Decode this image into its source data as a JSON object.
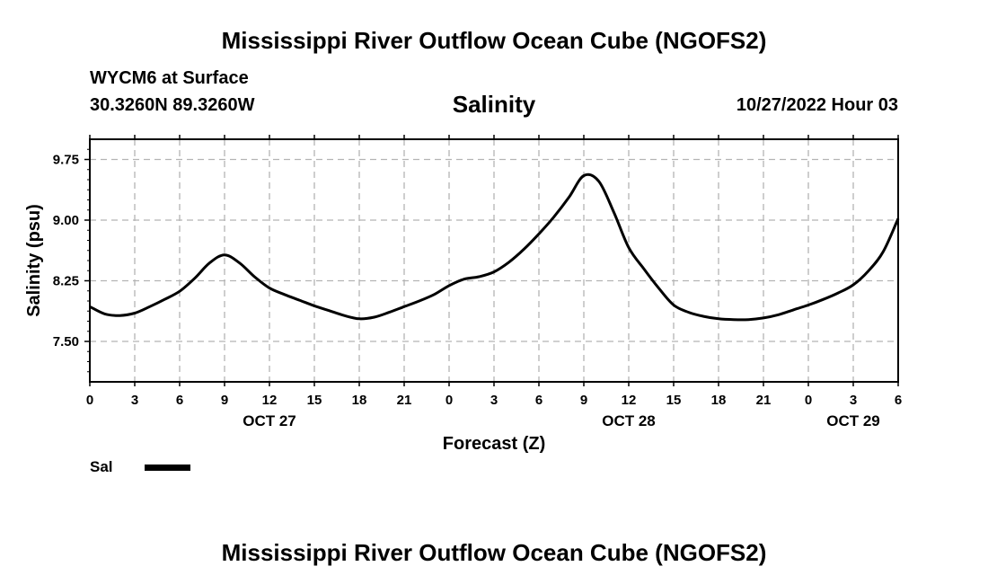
{
  "header": {
    "main_title": "Mississippi River Outflow Ocean Cube (NGOFS2)",
    "station": "WYCM6 at Surface",
    "coords": "30.3260N  89.3260W",
    "datetime": "10/27/2022 Hour 03",
    "footer_title": "Mississippi River Outflow Ocean Cube (NGOFS2)"
  },
  "chart_data": {
    "type": "line",
    "title": "Salinity",
    "xlabel": "Forecast (Z)",
    "ylabel": "Salinity (psu)",
    "xlim": [
      0,
      54
    ],
    "ylim": [
      7.0,
      10.0
    ],
    "x_ticks": [
      {
        "value": 0,
        "label": "0"
      },
      {
        "value": 3,
        "label": "3"
      },
      {
        "value": 6,
        "label": "6"
      },
      {
        "value": 9,
        "label": "9"
      },
      {
        "value": 12,
        "label": "12"
      },
      {
        "value": 15,
        "label": "15"
      },
      {
        "value": 18,
        "label": "18"
      },
      {
        "value": 21,
        "label": "21"
      },
      {
        "value": 24,
        "label": "0"
      },
      {
        "value": 27,
        "label": "3"
      },
      {
        "value": 30,
        "label": "6"
      },
      {
        "value": 33,
        "label": "9"
      },
      {
        "value": 36,
        "label": "12"
      },
      {
        "value": 39,
        "label": "15"
      },
      {
        "value": 42,
        "label": "18"
      },
      {
        "value": 45,
        "label": "21"
      },
      {
        "value": 48,
        "label": "0"
      },
      {
        "value": 51,
        "label": "3"
      },
      {
        "value": 54,
        "label": "6"
      }
    ],
    "date_labels": [
      {
        "value": 12,
        "label": "OCT 27"
      },
      {
        "value": 36,
        "label": "OCT 28"
      },
      {
        "value": 51,
        "label": "OCT 29"
      }
    ],
    "y_ticks": [
      7.5,
      8.25,
      9.0,
      9.75
    ],
    "y_tick_labels": [
      "7.50",
      "8.25",
      "9.00",
      "9.75"
    ],
    "grid": true,
    "series": [
      {
        "name": "Sal",
        "x": [
          0,
          1,
          2,
          3,
          4,
          5,
          6,
          7,
          8,
          9,
          10,
          11,
          12,
          13,
          14,
          15,
          16,
          17,
          18,
          19,
          20,
          21,
          22,
          23,
          24,
          25,
          26,
          27,
          28,
          29,
          30,
          31,
          32,
          33,
          34,
          35,
          36,
          37,
          38,
          39,
          40,
          41,
          42,
          43,
          44,
          45,
          46,
          47,
          48,
          49,
          50,
          51,
          52,
          53,
          54
        ],
        "values": [
          7.93,
          7.84,
          7.82,
          7.85,
          7.93,
          8.02,
          8.12,
          8.28,
          8.47,
          8.57,
          8.47,
          8.3,
          8.16,
          8.08,
          8.01,
          7.94,
          7.88,
          7.82,
          7.78,
          7.8,
          7.86,
          7.93,
          8.0,
          8.08,
          8.19,
          8.27,
          8.3,
          8.36,
          8.48,
          8.64,
          8.83,
          9.04,
          9.28,
          9.55,
          9.48,
          9.1,
          8.66,
          8.4,
          8.16,
          7.95,
          7.86,
          7.81,
          7.78,
          7.77,
          7.77,
          7.79,
          7.83,
          7.89,
          7.95,
          8.02,
          8.1,
          8.2,
          8.37,
          8.61,
          9.02
        ]
      }
    ]
  },
  "legend": {
    "label": "Sal"
  }
}
